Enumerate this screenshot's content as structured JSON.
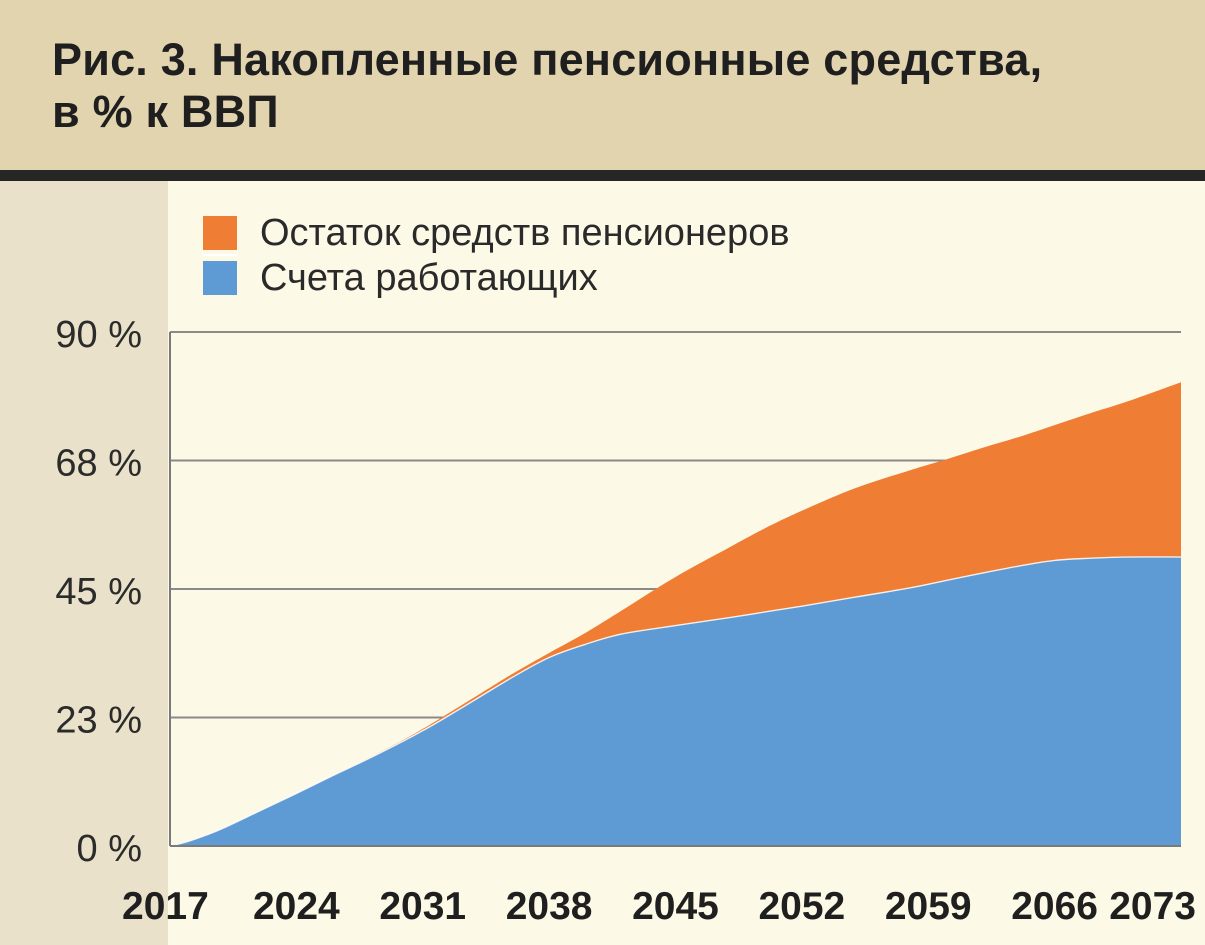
{
  "title": {
    "line1": "Рис. 3. Накопленные пенсионные средства,",
    "line2": "в % к ВВП"
  },
  "chart_data": {
    "type": "area",
    "stacked": true,
    "title": "Рис. 3. Накопленные пенсионные средства, в % к ВВП",
    "xlabel": "",
    "ylabel": "",
    "xlim": [
      2017,
      2073
    ],
    "ylim": [
      0,
      90
    ],
    "grid": true,
    "legend_position": "top-left",
    "x_ticks": [
      "2017",
      "2024",
      "2031",
      "2038",
      "2045",
      "2052",
      "2059",
      "2066",
      "2073"
    ],
    "y_ticks": [
      "0 %",
      "23 %",
      "45 %",
      "68 %",
      "90 %"
    ],
    "y_tick_values": [
      0,
      22.5,
      45,
      67.5,
      90
    ],
    "legend": [
      {
        "label": "Остаток средств пенсионеров",
        "color": "#ef7d33"
      },
      {
        "label": "Счета работающих",
        "color": "#5e9ad4"
      }
    ],
    "x": [
      2017,
      2018,
      2019,
      2020,
      2022,
      2024,
      2026,
      2028,
      2030,
      2031,
      2032,
      2034,
      2036,
      2038,
      2040,
      2042,
      2045,
      2048,
      2050,
      2052,
      2055,
      2058,
      2060,
      2062,
      2064,
      2066,
      2068,
      2070,
      2073
    ],
    "series": [
      {
        "name": "Счета работающих",
        "color": "#5e9ad4",
        "values": [
          0,
          0.8,
          1.9,
          3.2,
          6.2,
          9.2,
          12.3,
          15.3,
          18.5,
          20.2,
          22.0,
          25.8,
          29.6,
          33.0,
          35.3,
          37.1,
          38.6,
          40.0,
          41.0,
          42.0,
          43.6,
          45.2,
          46.5,
          47.8,
          49.0,
          50.0,
          50.4,
          50.6,
          50.6
        ]
      },
      {
        "name": "Остаток средств пенсионеров",
        "color": "#ef7d33",
        "values": [
          0,
          0,
          0,
          0,
          0,
          0,
          0,
          0.1,
          0.2,
          0.3,
          0.4,
          0.5,
          0.6,
          0.8,
          2.0,
          4.1,
          8.5,
          12.3,
          14.7,
          16.7,
          19.1,
          20.6,
          21.2,
          21.9,
          22.6,
          23.7,
          25.4,
          27.2,
          30.6
        ]
      }
    ]
  }
}
